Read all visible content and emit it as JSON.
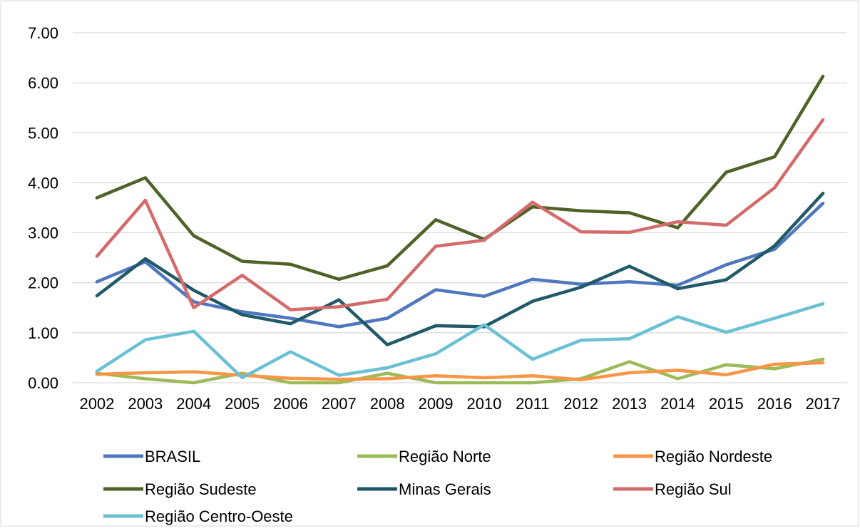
{
  "chart_data": {
    "type": "line",
    "title": "",
    "xlabel": "",
    "ylabel": "",
    "ylim": [
      0,
      7
    ],
    "yticks": [
      "0.00",
      "1.00",
      "2.00",
      "3.00",
      "4.00",
      "5.00",
      "6.00",
      "7.00"
    ],
    "grid": true,
    "legend_position": "bottom",
    "x": [
      "2002",
      "2003",
      "2004",
      "2005",
      "2006",
      "2007",
      "2008",
      "2009",
      "2010",
      "2011",
      "2012",
      "2013",
      "2014",
      "2015",
      "2016",
      "2017"
    ],
    "series": [
      {
        "name": "BRASIL",
        "color": "#4F77BE",
        "values": [
          2.02,
          2.42,
          1.62,
          1.42,
          1.29,
          1.12,
          1.29,
          1.86,
          1.73,
          2.07,
          1.97,
          2.02,
          1.95,
          2.36,
          2.67,
          3.59
        ]
      },
      {
        "name": "Região Norte",
        "color": "#9BBB59",
        "values": [
          0.19,
          0.08,
          0.0,
          0.19,
          0.0,
          0.0,
          0.19,
          0.0,
          0.0,
          0.0,
          0.08,
          0.42,
          0.08,
          0.36,
          0.28,
          0.47
        ]
      },
      {
        "name": "Região Nordeste",
        "color": "#F79646",
        "values": [
          0.17,
          0.2,
          0.22,
          0.15,
          0.09,
          0.07,
          0.08,
          0.14,
          0.1,
          0.14,
          0.06,
          0.2,
          0.25,
          0.16,
          0.37,
          0.4
        ]
      },
      {
        "name": "Região Sudeste",
        "color": "#4F6228",
        "values": [
          3.7,
          4.1,
          2.94,
          2.43,
          2.37,
          2.07,
          2.34,
          3.26,
          2.87,
          3.52,
          3.44,
          3.4,
          3.1,
          4.21,
          4.52,
          6.13
        ]
      },
      {
        "name": "Minas Gerais",
        "color": "#215968",
        "values": [
          1.74,
          2.48,
          1.85,
          1.36,
          1.18,
          1.66,
          0.76,
          1.14,
          1.12,
          1.63,
          1.91,
          2.33,
          1.88,
          2.06,
          2.74,
          3.79
        ]
      },
      {
        "name": "Região Sul",
        "color": "#D46B6B",
        "values": [
          2.53,
          3.65,
          1.5,
          2.15,
          1.46,
          1.52,
          1.67,
          2.73,
          2.85,
          3.61,
          3.02,
          3.01,
          3.22,
          3.15,
          3.9,
          5.26
        ]
      },
      {
        "name": "Região Centro-Oeste",
        "color": "#6BC0D4",
        "values": [
          0.23,
          0.86,
          1.03,
          0.1,
          0.62,
          0.15,
          0.3,
          0.58,
          1.16,
          0.47,
          0.85,
          0.88,
          1.32,
          1.01,
          1.29,
          1.58
        ]
      }
    ]
  }
}
